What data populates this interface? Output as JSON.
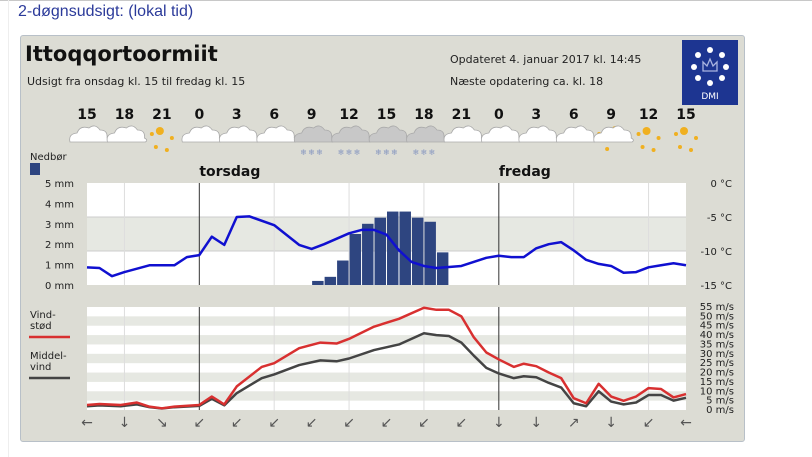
{
  "page_title": "2-døgnsudsigt: (lokal tid)",
  "location": "Ittoqqortoormiit",
  "subtitle": "Udsigt fra onsdag kl. 15 til fredag kl. 15",
  "updated": "Opdateret 4. januar 2017 kl. 14:45",
  "next_update": "Næste opdatering ca. kl. 18",
  "logo_text": "DMI",
  "colors": {
    "temp": "#1010d0",
    "precip": "#2e4580",
    "gust": "#d83030",
    "mean": "#444444",
    "logo": "#1d3591"
  },
  "chart_data": [
    {
      "type": "line",
      "time_labels": [
        "15",
        "18",
        "21",
        "0",
        "3",
        "6",
        "9",
        "12",
        "15",
        "18",
        "21",
        "0",
        "3",
        "6",
        "9",
        "12",
        "15"
      ],
      "weather_icons": [
        "cloudy",
        "cloudy",
        "clear-night",
        "cloudy",
        "cloudy",
        "cloudy",
        "snow",
        "snow",
        "snow",
        "snow",
        "cloudy",
        "cloudy",
        "cloudy",
        "cloudy",
        "partly-cloudy-night",
        "clear-night",
        "clear-night"
      ],
      "day_labels": [
        {
          "label": "torsdag",
          "hour": 9
        },
        {
          "label": "fredag",
          "hour": 33
        }
      ],
      "precip_legend": "Nedbør",
      "left_axis": {
        "ticks": [
          "0 mm",
          "1 mm",
          "2 mm",
          "3 mm",
          "4 mm",
          "5 mm"
        ],
        "range": [
          0,
          5
        ]
      },
      "right_axis": {
        "ticks": [
          "-15 °C",
          "-10 °C",
          "-5 °C",
          "0 °C"
        ],
        "range": [
          -15,
          0
        ]
      },
      "temperature": {
        "x": [
          0,
          1,
          2,
          3,
          5,
          7,
          8,
          9,
          10,
          11,
          12,
          13,
          15,
          17,
          18,
          19,
          21,
          22,
          23,
          24,
          25,
          26,
          27,
          28,
          30,
          32,
          33,
          34,
          35,
          36,
          37,
          38,
          39,
          40,
          41,
          42,
          43,
          44,
          45,
          46,
          47,
          48
        ],
        "y": [
          -12.4,
          -12.5,
          -13.7,
          -13.1,
          -12.1,
          -12.1,
          -10.9,
          -10.6,
          -7.9,
          -9.1,
          -5.0,
          -4.9,
          -6.2,
          -9.1,
          -9.7,
          -9.0,
          -7.4,
          -6.9,
          -6.9,
          -7.6,
          -9.9,
          -11.6,
          -12.2,
          -12.5,
          -12.2,
          -11.0,
          -10.7,
          -10.9,
          -10.9,
          -9.6,
          -9.0,
          -8.7,
          -9.9,
          -11.3,
          -11.9,
          -12.2,
          -13.2,
          -13.1,
          -12.4,
          -12.1,
          -11.8,
          -12.1
        ]
      },
      "precipitation": {
        "x": [
          18,
          19,
          20,
          21,
          22,
          23,
          24,
          25,
          26,
          27,
          28
        ],
        "y": [
          0.2,
          0.4,
          1.2,
          2.5,
          3.0,
          3.3,
          3.6,
          3.6,
          3.3,
          3.1,
          1.6
        ]
      }
    },
    {
      "type": "line",
      "right_axis": {
        "ticks": [
          "0 m/s",
          "5 m/s",
          "10 m/s",
          "15 m/s",
          "20 m/s",
          "25 m/s",
          "30 m/s",
          "35 m/s",
          "40 m/s",
          "45 m/s",
          "50 m/s",
          "55 m/s"
        ],
        "range": [
          0,
          55
        ]
      },
      "legend": [
        "Vind-\nstød",
        "Middel-\nvind"
      ],
      "series": [
        {
          "name": "Vindstød",
          "x": [
            0,
            1,
            2.7,
            4,
            5,
            6,
            7,
            9,
            10,
            11,
            12,
            14,
            15,
            17,
            18.7,
            20,
            21,
            23,
            25,
            27,
            28,
            29,
            30,
            31,
            32,
            33,
            34.2,
            35,
            36,
            37,
            38,
            39,
            40,
            41,
            42,
            43,
            44,
            45,
            46,
            47,
            48
          ],
          "y": [
            2.7,
            3.2,
            2.7,
            4,
            1.8,
            0.9,
            1.8,
            2.7,
            7.2,
            3,
            12.6,
            23,
            25,
            33,
            36,
            35.5,
            38,
            44.5,
            48.7,
            54.6,
            53.5,
            53.5,
            50,
            38.8,
            30.7,
            27,
            23,
            24.7,
            23.4,
            20,
            17,
            6.3,
            3.6,
            14,
            7.2,
            4.9,
            7.2,
            11.7,
            11.2,
            6.7,
            8.5
          ]
        },
        {
          "name": "Middelvind",
          "x": [
            0,
            1,
            2.7,
            4,
            5,
            6,
            7,
            9,
            10,
            11,
            12,
            14,
            15,
            17,
            18.7,
            20,
            21,
            23,
            25,
            27,
            28,
            29,
            30,
            31,
            32,
            33,
            34.2,
            35,
            36,
            37,
            38,
            39,
            40,
            41,
            42,
            43,
            44,
            45,
            46,
            47,
            48
          ],
          "y": [
            2,
            2.5,
            2,
            3,
            1.5,
            0.8,
            1.5,
            2.2,
            6,
            2.5,
            9,
            17,
            19,
            24,
            26.5,
            26,
            27.5,
            32,
            35,
            41,
            40,
            39.5,
            36,
            29,
            22.5,
            19.5,
            17,
            18,
            17.5,
            14.5,
            12,
            3.6,
            2,
            10,
            4.5,
            3,
            4,
            8,
            8,
            5,
            6.5
          ]
        }
      ],
      "direction_arrows": [
        "←",
        "↓",
        "↘",
        "↙",
        "↙",
        "↙",
        "↙",
        "↙",
        "↙",
        "↙",
        "↙",
        "↓",
        "↓",
        "↗",
        "↓",
        "↙",
        "←"
      ]
    }
  ]
}
